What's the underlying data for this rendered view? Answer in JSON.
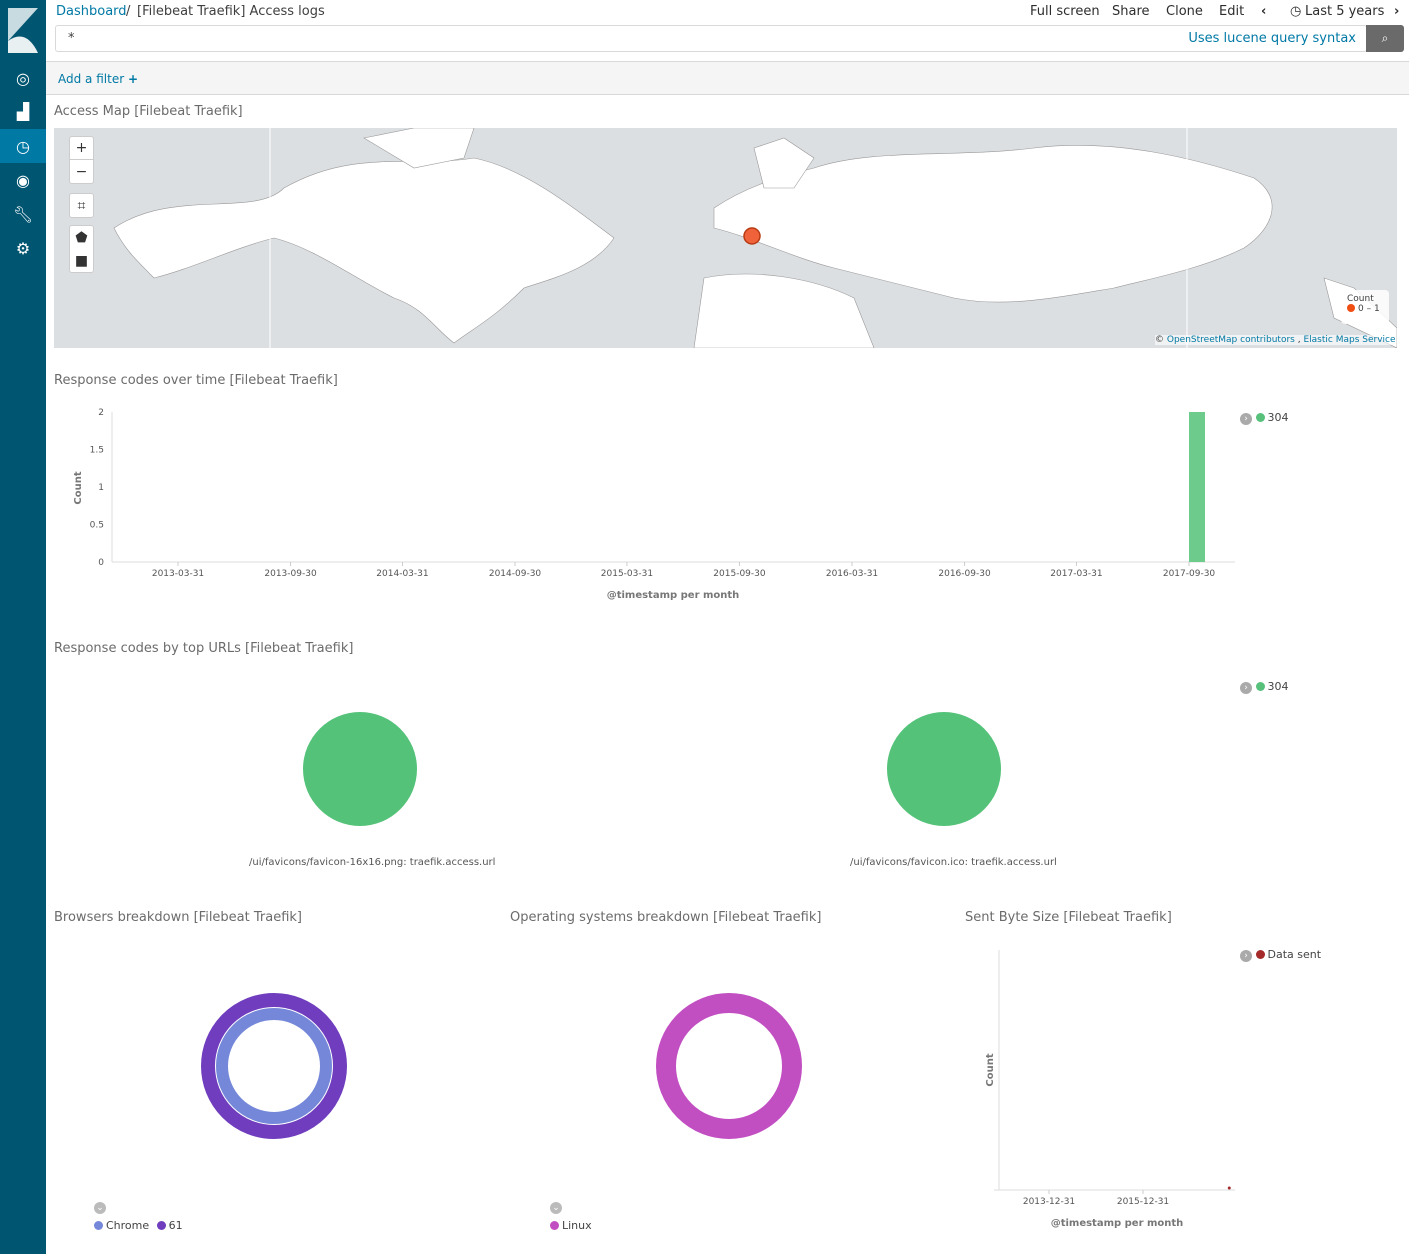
{
  "sidebar": {
    "items": [
      "discover",
      "visualize",
      "dashboard",
      "timelion",
      "dev-tools",
      "management"
    ]
  },
  "breadcrumb": {
    "root": "Dashboard",
    "sep": "/",
    "current": "[Filebeat Traefik] Access logs"
  },
  "toolbar": {
    "full_screen": "Full screen",
    "share": "Share",
    "clone": "Clone",
    "edit": "Edit",
    "time_range": "Last 5 years"
  },
  "query": {
    "value": "*",
    "hint": "Uses lucene query syntax"
  },
  "filter": {
    "add_label": "Add a filter",
    "plus": "+"
  },
  "colors": {
    "sidebar": "#005571",
    "accent": "#0079a5",
    "green": "#57c17b",
    "bar": "#6dcc8b",
    "purple_outer": "#6f3dbd",
    "purple_inner": "#7487d9",
    "pink": "#c24fc2",
    "red": "#a52a2a"
  },
  "panels": {
    "map": {
      "title": "Access Map [Filebeat Traefik]",
      "zoom_in": "+",
      "zoom_out": "−",
      "legend_title": "Count",
      "legend_range": "0 – 1",
      "attribution_prefix": "©",
      "osm": "OpenStreetMap contributors",
      "sep": ",",
      "ems": "Elastic Maps Service"
    },
    "response_time": {
      "title": "Response codes over time [Filebeat Traefik]"
    },
    "response_urls": {
      "title": "Response codes by top URLs [Filebeat Traefik]",
      "legend": "304",
      "pies": [
        "/ui/favicons/favicon-16x16.png: traefik.access.url",
        "/ui/favicons/favicon.ico: traefik.access.url"
      ]
    },
    "browsers": {
      "title": "Browsers breakdown [Filebeat Traefik]",
      "legend": [
        "Chrome",
        "61"
      ]
    },
    "os": {
      "title": "Operating systems breakdown [Filebeat Traefik]",
      "legend": [
        "Linux"
      ]
    },
    "bytes": {
      "title": "Sent Byte Size [Filebeat Traefik]"
    }
  },
  "chart_data": [
    {
      "type": "bar",
      "xlabel": "@timestamp per month",
      "ylabel": "Count",
      "ylim": [
        0,
        2
      ],
      "yticks": [
        "0",
        "0.5",
        "1",
        "1.5",
        "2"
      ],
      "xticks": [
        "2013-03-31",
        "2013-09-30",
        "2014-03-31",
        "2014-09-30",
        "2015-03-31",
        "2015-09-30",
        "2016-03-31",
        "2016-09-30",
        "2017-03-31",
        "2017-09-30"
      ],
      "series": [
        {
          "name": "304",
          "points": [
            {
              "x": "2017-09-30",
              "y": 2
            }
          ]
        }
      ],
      "legend": "top-right"
    },
    {
      "type": "line",
      "xlabel": "@timestamp per month",
      "ylabel": "Count",
      "xticks": [
        "2013-12-31",
        "2015-12-31"
      ],
      "series": [
        {
          "name": "Data sent",
          "points": [
            {
              "x": "2017-10-31",
              "y": 0
            }
          ]
        }
      ],
      "legend": "top-right"
    }
  ]
}
